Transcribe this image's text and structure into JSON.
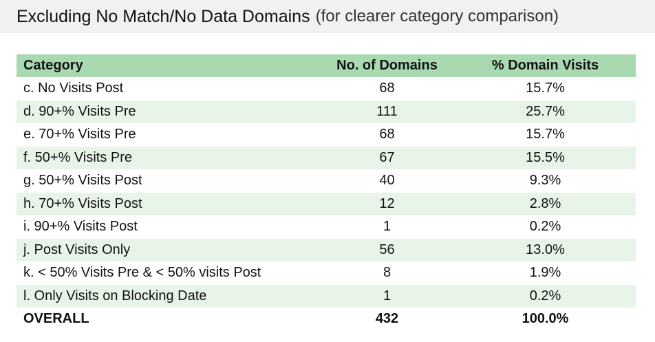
{
  "title": {
    "main": "Excluding No Match/No Data Domains",
    "sub": "(for clearer category comparison)"
  },
  "table": {
    "headers": [
      "Category",
      "No. of Domains",
      "% Domain Visits"
    ],
    "rows": [
      [
        "c. No Visits Post",
        "68",
        "15.7%"
      ],
      [
        "d. 90+% Visits Pre",
        "111",
        "25.7%"
      ],
      [
        "e. 70+% Visits Pre",
        "68",
        "15.7%"
      ],
      [
        "f. 50+% Visits Pre",
        "67",
        "15.5%"
      ],
      [
        "g. 50+% Visits Post",
        "40",
        "9.3%"
      ],
      [
        "h. 70+% Visits Post",
        "12",
        "2.8%"
      ],
      [
        "i. 90+% Visits Post",
        "1",
        "0.2%"
      ],
      [
        "j. Post Visits Only",
        "56",
        "13.0%"
      ],
      [
        "k. < 50% Visits Pre & < 50% visits Post",
        "8",
        "1.9%"
      ],
      [
        "l. Only Visits on Blocking Date",
        "1",
        "0.2%"
      ]
    ],
    "total": [
      "OVERALL",
      "432",
      "100.0%"
    ]
  },
  "colors": {
    "header_bg": "#a9d9b1",
    "alt_row_bg": "#e8f4e8",
    "title_bg": "#f1f1f0"
  }
}
